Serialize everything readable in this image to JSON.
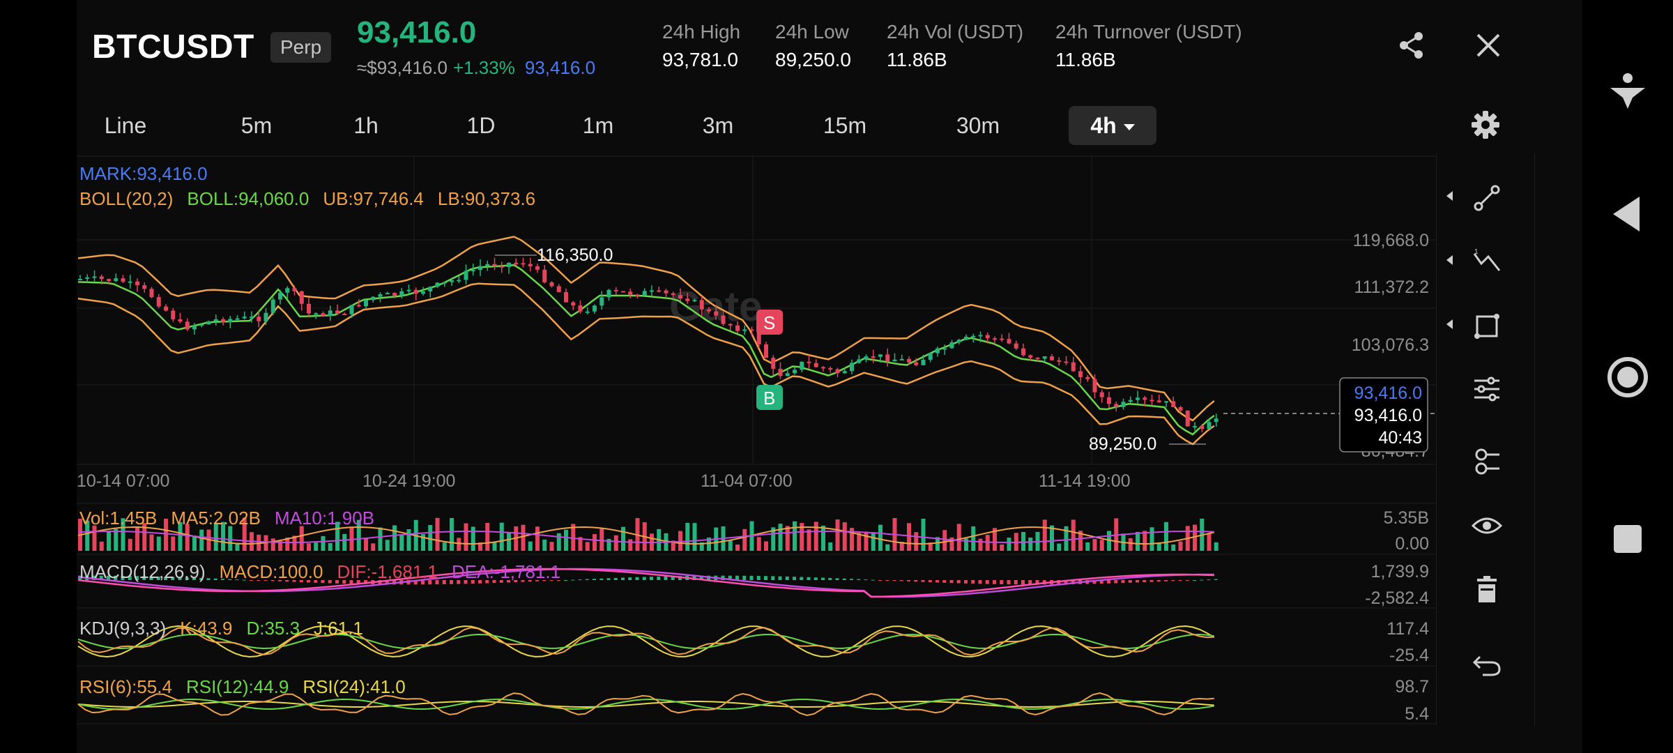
{
  "header": {
    "symbol": "BTCUSDT",
    "contract_type": "Perp",
    "last_price": "93,416.0",
    "usd_price": "≈$93,416.0",
    "change_pct": "+1.33%",
    "mark_price": "93,416.0",
    "stats": [
      {
        "label": "24h High",
        "value": "93,781.0"
      },
      {
        "label": "24h Low",
        "value": "89,250.0"
      },
      {
        "label": "24h Vol (USDT)",
        "value": "11.86B"
      },
      {
        "label": "24h Turnover (USDT)",
        "value": "11.86B"
      }
    ],
    "share_icon": "share-icon",
    "close_icon": "close-icon"
  },
  "intervals": {
    "items": [
      "Line",
      "5m",
      "1h",
      "1D",
      "1m",
      "3m",
      "15m",
      "30m"
    ],
    "active": "4h",
    "settings_icon": "gear-icon"
  },
  "main_chart": {
    "mark_legend": "MARK:93,416.0",
    "boll_name": "BOLL(20,2)",
    "boll_mid": "BOLL:94,060.0",
    "boll_ub": "UB:97,746.4",
    "boll_lb": "LB:90,373.6",
    "y_ticks": [
      "119,668.0",
      "111,372.2",
      "103,076.3",
      "86,484.7"
    ],
    "x_ticks": [
      "10-14 07:00",
      "10-24 19:00",
      "11-04 07:00",
      "11-14 19:00"
    ],
    "high_label": "116,350.0",
    "low_label": "89,250.0",
    "current_mark": "93,416.0",
    "current_last": "93,416.0",
    "countdown": "40:43",
    "sell_marker": "S",
    "buy_marker": "B",
    "watermark": "Gate"
  },
  "volume": {
    "vol": "Vol:1.45B",
    "ma5": "MA5:2.02B",
    "ma10": "MA10:1.90B",
    "y_top": "5.35B",
    "y_bottom": "0.00"
  },
  "macd": {
    "name": "MACD(12,26,9)",
    "macd": "MACD:100.0",
    "dif": "DIF:-1,681.1",
    "dea": "DEA:-1,781.1",
    "y_top": "1,739.9",
    "y_bottom": "-2,582.4"
  },
  "kdj": {
    "name": "KDJ(9,3,3)",
    "k": "K:43.9",
    "d": "D:35.3",
    "j": "J:61.1",
    "y_top": "117.4",
    "y_bottom": "-25.4"
  },
  "rsi": {
    "r6": "RSI(6):55.4",
    "r12": "RSI(12):44.9",
    "r24": "RSI(24):41.0",
    "y_top": "98.7",
    "y_bottom": "5.4"
  },
  "tools": [
    "trend-line-icon",
    "fib-icon",
    "shape-icon",
    "indicator-settings-icon",
    "layout-icon",
    "eye-icon",
    "trash-icon",
    "undo-icon"
  ],
  "colors": {
    "up": "#25b47e",
    "down": "#e5445c",
    "mark": "#4a7bf7",
    "boll_mid": "#6ad84a",
    "boll_band": "#f0a24a",
    "ma10": "#c34ce0"
  }
}
